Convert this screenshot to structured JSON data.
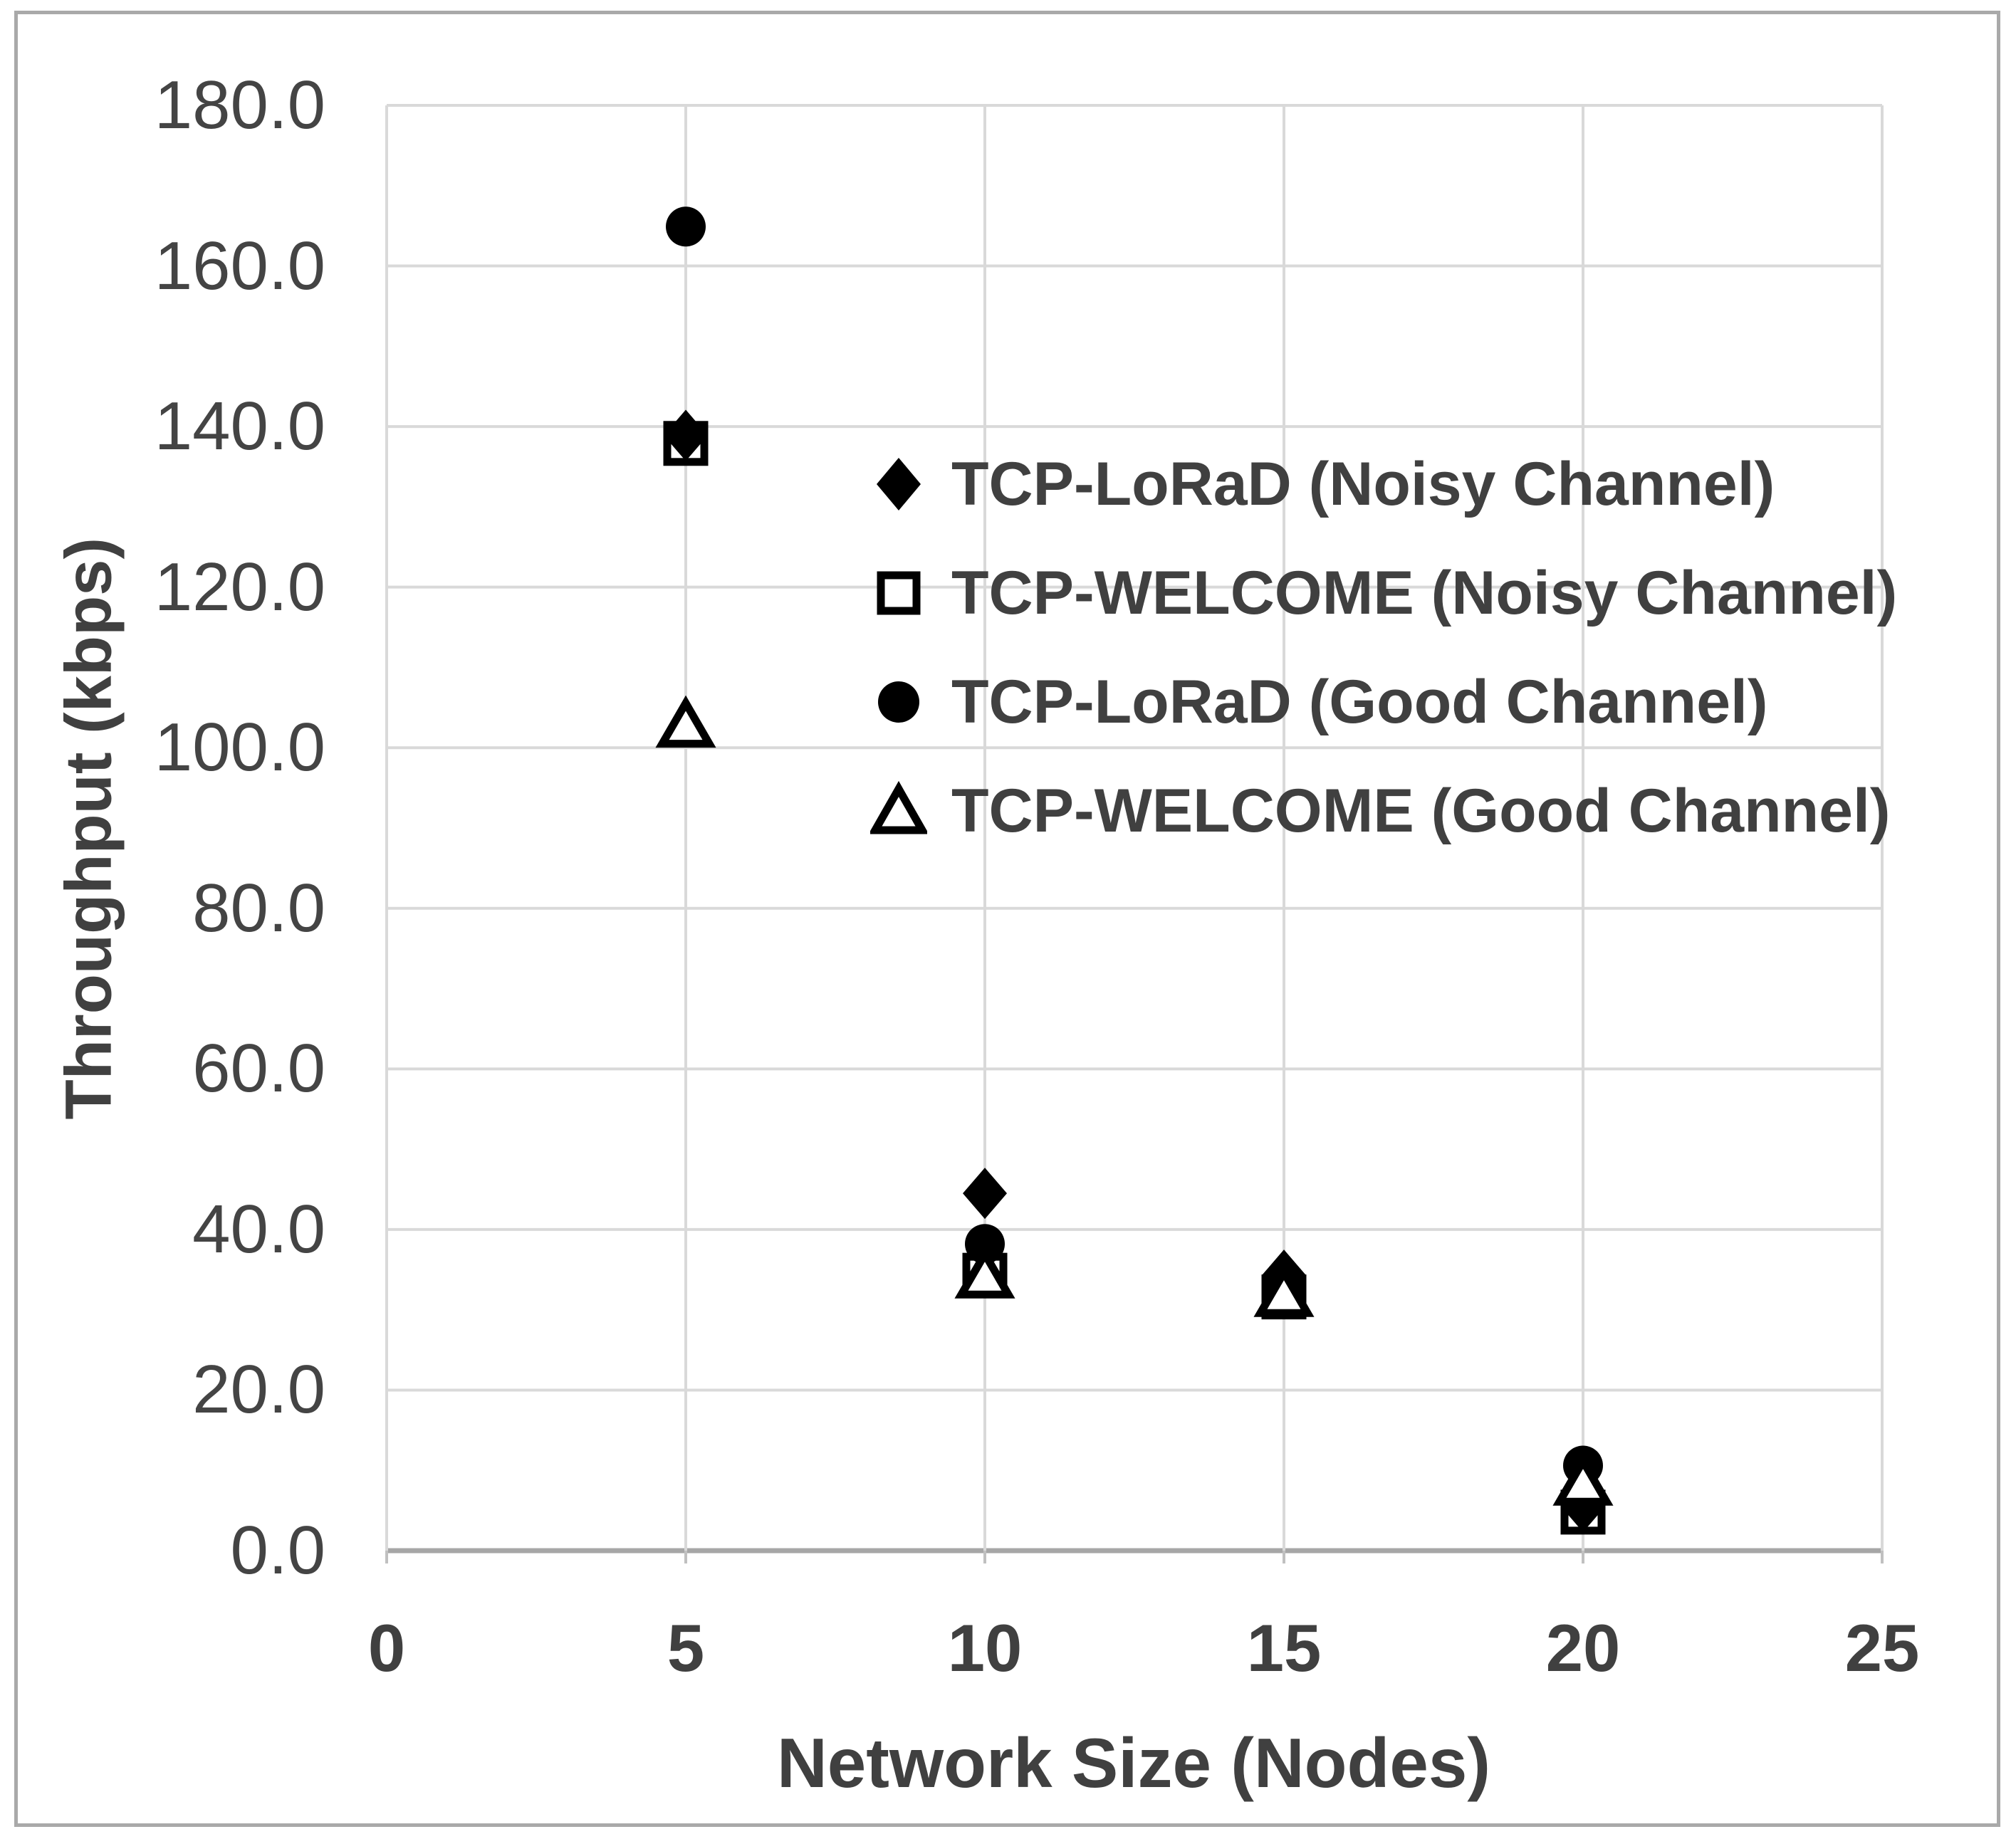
{
  "chart_data": {
    "type": "scatter",
    "title": "",
    "xlabel": "Network Size (Nodes)",
    "ylabel": "Throughput (kbps)",
    "xlim": [
      0,
      25
    ],
    "ylim": [
      0,
      180
    ],
    "x_tick_labels": [
      "0",
      "5",
      "10",
      "15",
      "20",
      "25"
    ],
    "x_tick_values": [
      0,
      5,
      10,
      15,
      20,
      25
    ],
    "y_tick_labels": [
      "0.0",
      "20.0",
      "40.0",
      "60.0",
      "80.0",
      "100.0",
      "120.0",
      "140.0",
      "160.0",
      "180.0"
    ],
    "y_tick_values": [
      0,
      20,
      40,
      60,
      80,
      100,
      120,
      140,
      160,
      180
    ],
    "grid": true,
    "legend_position": "inside upper-right",
    "series": [
      {
        "name": "TCP-LoRaD (Noisy Channel)",
        "marker": "filled-diamond",
        "x": [
          5,
          10,
          15,
          20
        ],
        "y": [
          138.9,
          44.5,
          34.3,
          5.5
        ]
      },
      {
        "name": "TCP-WELCOME (Noisy Channel)",
        "marker": "open-square",
        "x": [
          5,
          10,
          15,
          20
        ],
        "y": [
          137.9,
          34.3,
          31.6,
          4.8
        ]
      },
      {
        "name": "TCP-LoRaD (Good Channel)",
        "marker": "filled-circle",
        "x": [
          5,
          10,
          15,
          20
        ],
        "y": [
          164.9,
          38.2,
          33.5,
          10.6
        ]
      },
      {
        "name": "TCP-WELCOME (Good Channel)",
        "marker": "open-triangle",
        "x": [
          5,
          10,
          15,
          20
        ],
        "y": [
          102.8,
          34.2,
          31.9,
          8.4
        ]
      }
    ],
    "colors": {
      "marker": "#000000",
      "open_marker_fill": "#ffffff",
      "text": "#404040",
      "gridline": "#d9d9d9",
      "axis_line": "#a6a6a6",
      "frame": "#a9a9a9",
      "background": "#ffffff"
    }
  }
}
